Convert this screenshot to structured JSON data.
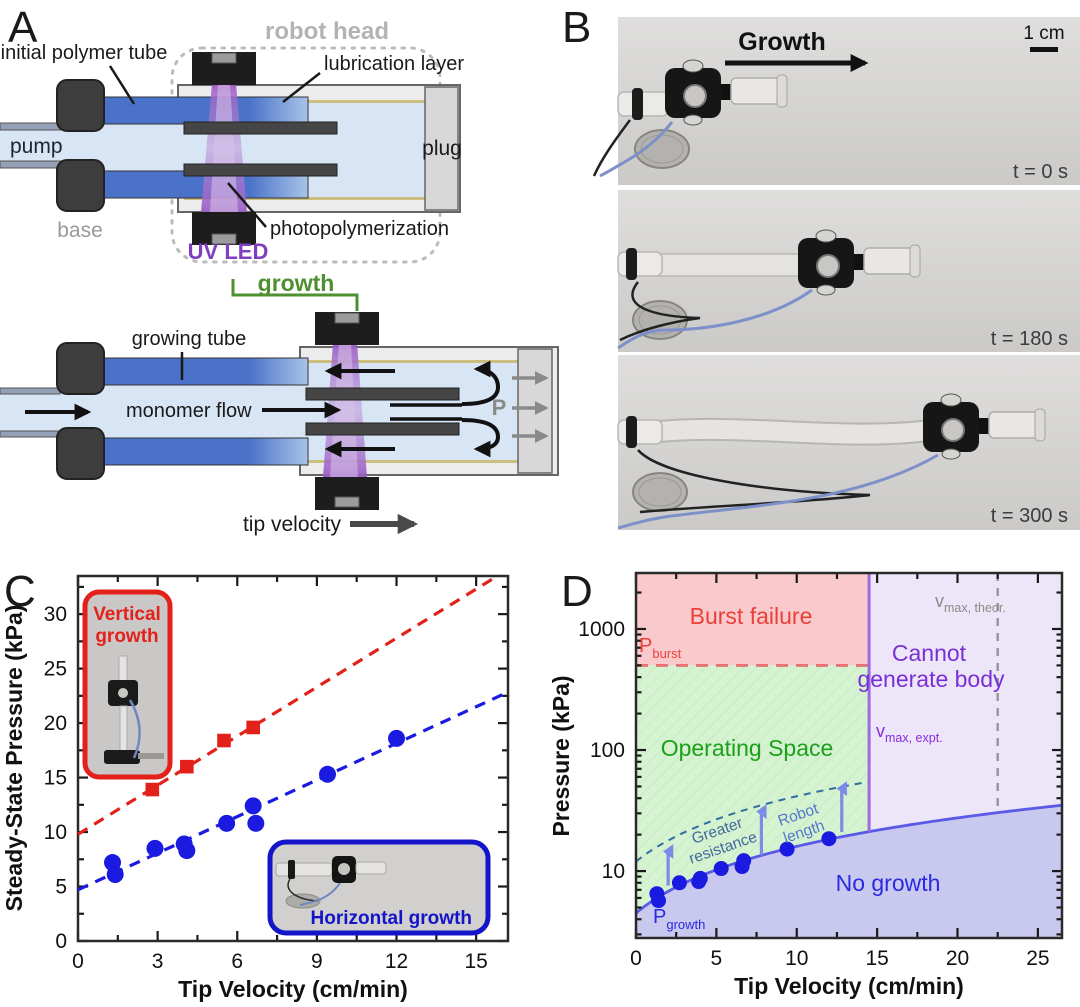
{
  "panels": {
    "a": "A",
    "b": "B",
    "c": "C",
    "d": "D"
  },
  "panel_a": {
    "robot_head": "robot head",
    "initial_polymer_tube": "initial polymer tube",
    "lubrication_layer": "lubrication layer",
    "pump": "pump",
    "plug": "plug",
    "base": "base",
    "uv_led": "UV LED",
    "photopolymerization": "photopolymerization",
    "growth": "growth",
    "growing_tube": "growing tube",
    "monomer_flow": "monomer flow",
    "pressure_symbol": "P",
    "tip_velocity": "tip velocity",
    "colors": {
      "tube_blue": "#4a72c8",
      "monomer": "#d7e5f4",
      "uv_purple": "#9a5ec6",
      "growth_green": "#4e8f2f"
    }
  },
  "panel_b": {
    "growth_arrow_label": "Growth",
    "scale_bar_label": "1 cm",
    "frames": [
      {
        "time_label": "t = 0 s"
      },
      {
        "time_label": "t = 180 s"
      },
      {
        "time_label": "t = 300 s"
      }
    ]
  },
  "chart_data": [
    {
      "panel": "C",
      "type": "scatter",
      "xlabel": "Tip Velocity (cm/min)",
      "ylabel": "Steady-State Pressure (kPa)",
      "xlim": [
        0,
        16.2
      ],
      "ylim": [
        0,
        33.5
      ],
      "xticks": [
        0,
        3,
        6,
        9,
        12,
        15
      ],
      "yticks": [
        0,
        5,
        10,
        15,
        20,
        25,
        30
      ],
      "series": [
        {
          "name": "Vertical growth",
          "marker": "square",
          "color": "#e3211a",
          "points": [
            [
              2.8,
              13.9
            ],
            [
              4.1,
              16.0
            ],
            [
              5.5,
              18.4
            ],
            [
              6.6,
              19.6
            ]
          ],
          "fit_line": {
            "intercept": 9.8,
            "slope": 1.5
          }
        },
        {
          "name": "Horizontal growth",
          "marker": "circle",
          "color": "#1a1ae0",
          "points": [
            [
              1.3,
              7.2
            ],
            [
              1.4,
              6.1
            ],
            [
              2.9,
              8.5
            ],
            [
              4.0,
              8.9
            ],
            [
              4.1,
              8.3
            ],
            [
              5.6,
              10.8
            ],
            [
              6.6,
              12.4
            ],
            [
              6.7,
              10.8
            ],
            [
              9.4,
              15.3
            ],
            [
              12.0,
              18.6
            ]
          ],
          "fit_line": {
            "intercept": 4.7,
            "slope": 1.12
          }
        }
      ],
      "inset_vertical": {
        "line1": "Vertical",
        "line2": "growth",
        "color": "#e3211a"
      },
      "inset_horizontal": {
        "label": "Horizontal growth",
        "color": "#1414c8"
      }
    },
    {
      "panel": "D",
      "type": "phase-diagram",
      "xlabel": "Tip Velocity (cm/min)",
      "ylabel": "Pressure (kPa)",
      "xlim": [
        0,
        26.5
      ],
      "ylim": [
        2.8,
        2900
      ],
      "yscale": "log",
      "xticks": [
        0,
        5,
        10,
        15,
        20,
        25
      ],
      "yticks": [
        10,
        100,
        1000
      ],
      "p_burst_kpa": 500,
      "v_max_expt_cm_min": 14.5,
      "v_max_theor_cm_min": 22.5,
      "growth_boundary_line": {
        "intercept": 4.5,
        "slope": 1.15
      },
      "resistance_line": {
        "intercept": 12.0,
        "slope": 2.95
      },
      "point_color": "#1a1ae0",
      "data_points": [
        [
          1.3,
          6.5
        ],
        [
          1.4,
          5.7
        ],
        [
          2.7,
          8.0
        ],
        [
          3.9,
          8.2
        ],
        [
          4.0,
          8.7
        ],
        [
          5.3,
          10.5
        ],
        [
          6.6,
          10.9
        ],
        [
          6.7,
          12.2
        ],
        [
          9.4,
          15.2
        ],
        [
          12.0,
          18.5
        ]
      ],
      "regions": {
        "burst": {
          "label": "Burst failure",
          "fill": "#f9c9cc",
          "text_color": "#e8403a"
        },
        "operating": {
          "label": "Operating Space",
          "fill": "#d5f3d0",
          "text_color": "#1ca01c"
        },
        "cannot": {
          "label_line1": "Cannot",
          "label_line2": "generate body",
          "fill": "#ece6f8",
          "text_color": "#7a2fd6"
        },
        "no_growth": {
          "label": "No growth",
          "fill": "#c9c9f0",
          "text_color": "#2a2ae0"
        }
      },
      "boundary_colors": {
        "burst_line": "#e57373",
        "v_max_expt_line": "#9b6be0",
        "v_max_theor_line": "#999999",
        "growth_curve": "#5a5ae6",
        "resistance_curve": "#2e6da0"
      },
      "annotations": {
        "p_burst": {
          "main": "P",
          "sub": "burst",
          "color": "#e8403a"
        },
        "p_growth": {
          "main": "P",
          "sub": "growth",
          "color": "#2a2ae0"
        },
        "v_max_theor": {
          "main": "v",
          "sub": "max, theor.",
          "color": "#8a8a8a"
        },
        "v_max_expt": {
          "main": "v",
          "sub": "max, expt.",
          "color": "#8a2be2"
        },
        "greater_resistance": {
          "line1": "Greater",
          "line2": "resistance",
          "color": "#44699e"
        },
        "robot_length": {
          "line1": "Robot",
          "line2": "length",
          "color": "#5577cc"
        }
      }
    }
  ]
}
